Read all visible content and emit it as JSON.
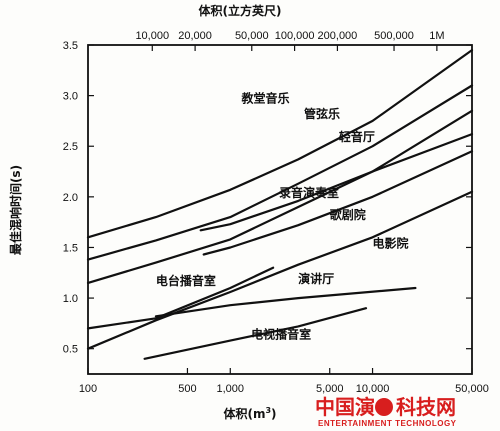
{
  "chart_data": {
    "type": "line",
    "xlabel_text": "体积(m",
    "xlabel_exp": "3",
    "xlabel_close": ")",
    "top_xlabel": "体积(立方英尺)",
    "ylabel": "最佳混响时间(s)",
    "xscale": "log",
    "xlim": [
      100,
      50000
    ],
    "ylim": [
      0.25,
      3.5
    ],
    "y_ticks": [
      {
        "value": 0.5,
        "label": "0.5"
      },
      {
        "value": 1.0,
        "label": "1.0"
      },
      {
        "value": 1.5,
        "label": "1.5"
      },
      {
        "value": 2.0,
        "label": "2.0"
      },
      {
        "value": 2.5,
        "label": "2.5"
      },
      {
        "value": 3.0,
        "label": "3.0"
      },
      {
        "value": 3.5,
        "label": "3.5"
      }
    ],
    "x_ticks": [
      {
        "value": 100,
        "label": "100"
      },
      {
        "value": 500,
        "label": "500"
      },
      {
        "value": 1000,
        "label": "1,000"
      },
      {
        "value": 5000,
        "label": "5,000"
      },
      {
        "value": 10000,
        "label": "10,000"
      },
      {
        "value": 50000,
        "label": "50,000"
      }
    ],
    "top_ticks": [
      {
        "value": 283,
        "label": "10,000"
      },
      {
        "value": 566,
        "label": "20,000"
      },
      {
        "value": 1416,
        "label": "50,000"
      },
      {
        "value": 2832,
        "label": "100,000"
      },
      {
        "value": 5663,
        "label": "200,000"
      },
      {
        "value": 14158,
        "label": "500,000"
      },
      {
        "value": 28317,
        "label": "1M"
      }
    ],
    "series": [
      {
        "name": "教堂音乐",
        "x": [
          100,
          300,
          1000,
          3000,
          10000,
          50000
        ],
        "y": [
          1.6,
          1.8,
          2.07,
          2.37,
          2.75,
          3.45
        ],
        "label_at": [
          1200,
          2.93
        ]
      },
      {
        "name": "管弦乐",
        "x": [
          100,
          300,
          1000,
          3000,
          10000,
          50000
        ],
        "y": [
          1.38,
          1.57,
          1.8,
          2.13,
          2.5,
          3.1
        ],
        "label_at": [
          3300,
          2.78
        ]
      },
      {
        "name": "轻音厅",
        "x": [
          100,
          300,
          1000,
          3000,
          10000,
          50000
        ],
        "y": [
          1.15,
          1.35,
          1.58,
          1.9,
          2.25,
          2.85
        ],
        "label_at": [
          5800,
          2.55
        ]
      },
      {
        "name": "录音演奏室",
        "x": [
          620,
          1000,
          3000,
          10000,
          50000
        ],
        "y": [
          1.67,
          1.73,
          1.96,
          2.25,
          2.62
        ],
        "label_at": [
          2200,
          2.0
        ]
      },
      {
        "name": "歌剧院",
        "x": [
          650,
          1000,
          3000,
          10000,
          50000
        ],
        "y": [
          1.43,
          1.5,
          1.72,
          2.0,
          2.45
        ],
        "label_at": [
          5000,
          1.78
        ]
      },
      {
        "name": "电影院",
        "x": [
          100,
          300,
          1000,
          3000,
          10000,
          50000
        ],
        "y": [
          0.5,
          0.78,
          1.06,
          1.33,
          1.6,
          2.05
        ],
        "label_at": [
          10000,
          1.5
        ]
      },
      {
        "name": "电台播音室",
        "x": [
          100,
          300,
          1000,
          2000
        ],
        "y": [
          0.7,
          0.8,
          1.1,
          1.3
        ],
        "label_at": [
          300,
          1.13
        ]
      },
      {
        "name": "演讲厅",
        "x": [
          300,
          1000,
          3000,
          20000
        ],
        "y": [
          0.82,
          0.93,
          1.0,
          1.1
        ],
        "label_at": [
          3000,
          1.15
        ]
      },
      {
        "name": "电视播音室",
        "x": [
          250,
          1000,
          3000,
          9000
        ],
        "y": [
          0.4,
          0.58,
          0.72,
          0.9
        ],
        "label_at": [
          1400,
          0.6
        ]
      }
    ]
  }
}
